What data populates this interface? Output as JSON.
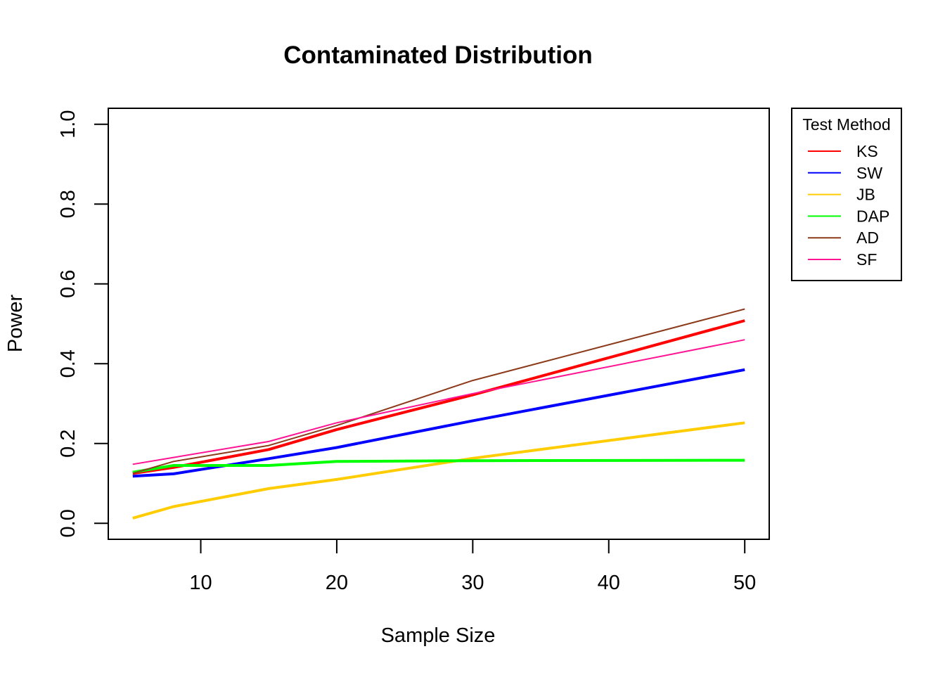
{
  "chart_data": {
    "type": "line",
    "title": "Contaminated Distribution",
    "xlabel": "Sample Size",
    "ylabel": "Power",
    "x": [
      5,
      8,
      15,
      20,
      30,
      50
    ],
    "xlim": [
      3.2,
      51.8
    ],
    "ylim": [
      -0.04,
      1.04
    ],
    "xticks": [
      10,
      20,
      30,
      40,
      50
    ],
    "yticks": [
      0.0,
      0.2,
      0.4,
      0.6,
      0.8,
      1.0
    ],
    "xtick_labels": [
      "10",
      "20",
      "30",
      "40",
      "50"
    ],
    "ytick_labels": [
      "0.0",
      "0.2",
      "0.4",
      "0.6",
      "0.8",
      "1.0"
    ],
    "grid": false,
    "legend": {
      "title": "Test Method",
      "position": "outside-top-right"
    },
    "series": [
      {
        "name": "KS",
        "color": "#FF0000",
        "line_weight": "thick",
        "values": [
          0.125,
          0.14,
          0.185,
          0.235,
          0.322,
          0.508
        ]
      },
      {
        "name": "SW",
        "color": "#0000FF",
        "line_weight": "thick",
        "values": [
          0.118,
          0.124,
          0.162,
          0.19,
          0.257,
          0.385
        ]
      },
      {
        "name": "JB",
        "color": "#FFCC00",
        "line_weight": "thick",
        "values": [
          0.013,
          0.042,
          0.087,
          0.11,
          0.163,
          0.252
        ]
      },
      {
        "name": "DAP",
        "color": "#00FF00",
        "line_weight": "thick",
        "values": [
          0.128,
          0.145,
          0.145,
          0.155,
          0.157,
          0.158
        ]
      },
      {
        "name": "AD",
        "color": "#8B3A1A",
        "line_weight": "thin",
        "values": [
          0.125,
          0.155,
          0.195,
          0.245,
          0.358,
          0.537
        ]
      },
      {
        "name": "SF",
        "color": "#FF1493",
        "line_weight": "thin",
        "values": [
          0.148,
          0.165,
          0.205,
          0.252,
          0.325,
          0.46
        ]
      }
    ]
  }
}
